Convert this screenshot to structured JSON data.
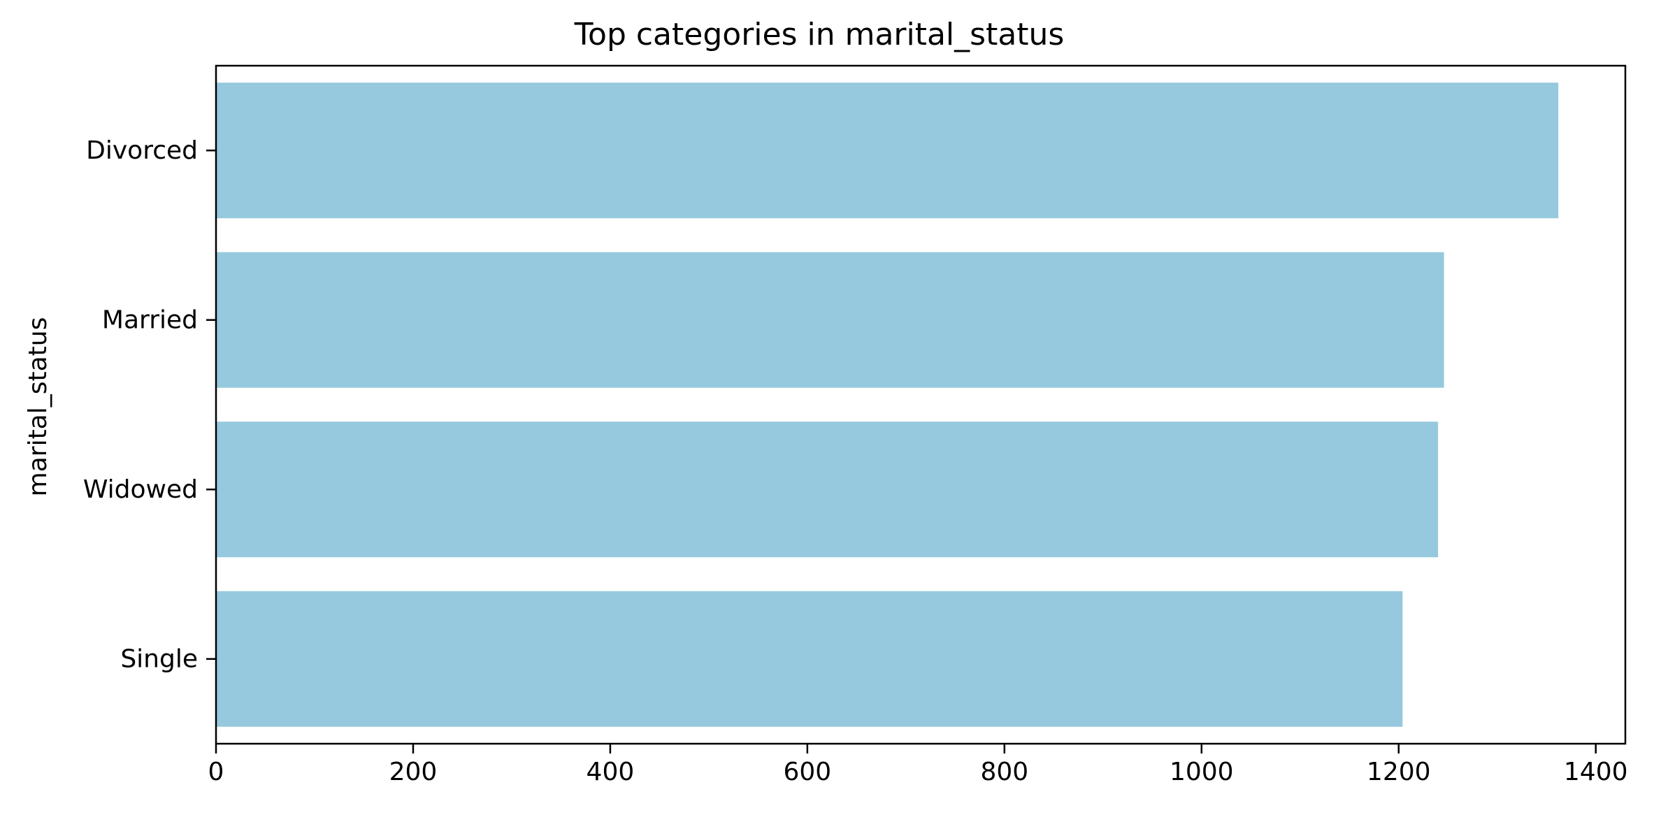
{
  "chart_data": {
    "type": "bar",
    "orientation": "horizontal",
    "title": "Top categories in marital_status",
    "xlabel": "",
    "ylabel": "marital_status",
    "categories": [
      "Divorced",
      "Married",
      "Widowed",
      "Single"
    ],
    "values": [
      1362,
      1246,
      1240,
      1204
    ],
    "xlim": [
      0,
      1430
    ],
    "xticks": [
      0,
      200,
      400,
      600,
      800,
      1000,
      1200,
      1400
    ],
    "grid": false,
    "legend": "none",
    "bar_color": "#96c9de"
  }
}
